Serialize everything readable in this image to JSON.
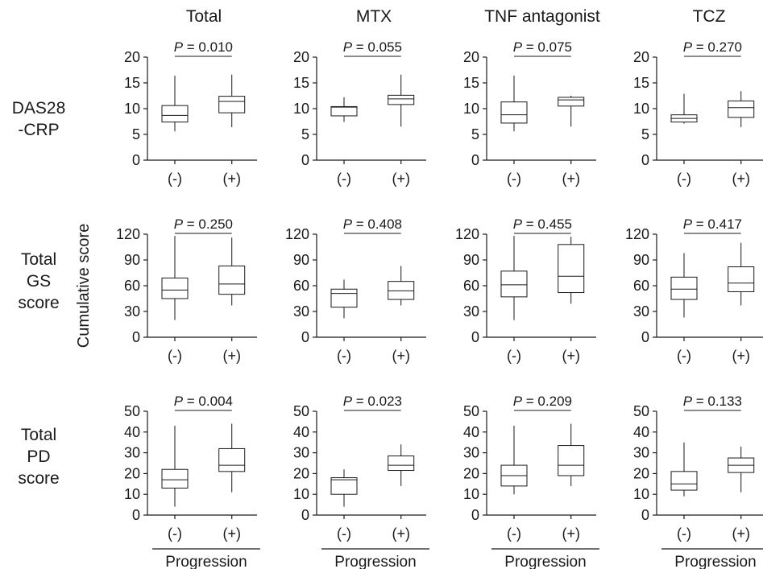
{
  "columns": [
    "Total",
    "MTX",
    "TNF antagonist",
    "TCZ"
  ],
  "rows": [
    {
      "label_lines": [
        "DAS28",
        "-CRP"
      ]
    },
    {
      "label_lines": [
        "Total",
        "GS",
        "score"
      ]
    },
    {
      "label_lines": [
        "Total",
        "PD",
        "score"
      ]
    }
  ],
  "y_axis_label": "Cumulative score",
  "x_group_label": "Progression",
  "chart_data": [
    {
      "type": "box",
      "row": 0,
      "col": 0,
      "categories": [
        "(-)",
        "(+)"
      ],
      "yticks": [
        0,
        5,
        10,
        15,
        20
      ],
      "ylim": [
        0,
        20
      ],
      "p_text": "= 0.010",
      "boxes": [
        {
          "min": 5.6,
          "q1": 7.4,
          "median": 8.7,
          "q3": 10.6,
          "max": 16.4
        },
        {
          "min": 6.4,
          "q1": 9.2,
          "median": 11.4,
          "q3": 12.4,
          "max": 16.6
        }
      ]
    },
    {
      "type": "box",
      "row": 0,
      "col": 1,
      "categories": [
        "(-)",
        "(+)"
      ],
      "yticks": [
        0,
        5,
        10,
        15,
        20
      ],
      "ylim": [
        0,
        20
      ],
      "p_text": "= 0.055",
      "boxes": [
        {
          "min": 7.4,
          "q1": 8.6,
          "median": 10.3,
          "q3": 10.4,
          "max": 12.2
        },
        {
          "min": 6.5,
          "q1": 10.8,
          "median": 11.9,
          "q3": 12.6,
          "max": 16.6
        }
      ]
    },
    {
      "type": "box",
      "row": 0,
      "col": 2,
      "categories": [
        "(-)",
        "(+)"
      ],
      "yticks": [
        0,
        5,
        10,
        15,
        20
      ],
      "ylim": [
        0,
        20
      ],
      "p_text": "= 0.075",
      "boxes": [
        {
          "min": 5.6,
          "q1": 7.2,
          "median": 8.8,
          "q3": 11.3,
          "max": 16.4
        },
        {
          "min": 6.5,
          "q1": 10.5,
          "median": 11.7,
          "q3": 12.2,
          "max": 12.5
        }
      ]
    },
    {
      "type": "box",
      "row": 0,
      "col": 3,
      "categories": [
        "(-)",
        "(+)"
      ],
      "yticks": [
        0,
        5,
        10,
        15,
        20
      ],
      "ylim": [
        0,
        20
      ],
      "p_text": "= 0.270",
      "boxes": [
        {
          "min": 7.1,
          "q1": 7.4,
          "median": 8.1,
          "q3": 8.8,
          "max": 12.9
        },
        {
          "min": 6.4,
          "q1": 8.3,
          "median": 10.2,
          "q3": 11.5,
          "max": 13.4
        }
      ]
    },
    {
      "type": "box",
      "row": 1,
      "col": 0,
      "categories": [
        "(-)",
        "(+)"
      ],
      "yticks": [
        0,
        30,
        60,
        90,
        120
      ],
      "ylim": [
        0,
        120
      ],
      "p_text": "= 0.250",
      "boxes": [
        {
          "min": 20,
          "q1": 45,
          "median": 55,
          "q3": 69,
          "max": 118
        },
        {
          "min": 37,
          "q1": 50,
          "median": 62,
          "q3": 83,
          "max": 116
        }
      ]
    },
    {
      "type": "box",
      "row": 1,
      "col": 1,
      "categories": [
        "(-)",
        "(+)"
      ],
      "yticks": [
        0,
        30,
        60,
        90,
        120
      ],
      "ylim": [
        0,
        120
      ],
      "p_text": "= 0.408",
      "boxes": [
        {
          "min": 22,
          "q1": 35,
          "median": 51,
          "q3": 56,
          "max": 67
        },
        {
          "min": 37,
          "q1": 44,
          "median": 54,
          "q3": 65,
          "max": 83
        }
      ]
    },
    {
      "type": "box",
      "row": 1,
      "col": 2,
      "categories": [
        "(-)",
        "(+)"
      ],
      "yticks": [
        0,
        30,
        60,
        90,
        120
      ],
      "ylim": [
        0,
        120
      ],
      "p_text": "= 0.455",
      "boxes": [
        {
          "min": 20,
          "q1": 47,
          "median": 61,
          "q3": 77,
          "max": 118
        },
        {
          "min": 39,
          "q1": 52,
          "median": 71,
          "q3": 108,
          "max": 117
        }
      ]
    },
    {
      "type": "box",
      "row": 1,
      "col": 3,
      "categories": [
        "(-)",
        "(+)"
      ],
      "yticks": [
        0,
        30,
        60,
        90,
        120
      ],
      "ylim": [
        0,
        120
      ],
      "p_text": "= 0.417",
      "boxes": [
        {
          "min": 23,
          "q1": 44,
          "median": 56,
          "q3": 70,
          "max": 98
        },
        {
          "min": 37,
          "q1": 53,
          "median": 63,
          "q3": 82,
          "max": 110
        }
      ]
    },
    {
      "type": "box",
      "row": 2,
      "col": 0,
      "categories": [
        "(-)",
        "(+)"
      ],
      "yticks": [
        0,
        10,
        20,
        30,
        40,
        50
      ],
      "ylim": [
        0,
        50
      ],
      "p_text": "= 0.004",
      "boxes": [
        {
          "min": 4,
          "q1": 13,
          "median": 17,
          "q3": 22,
          "max": 43
        },
        {
          "min": 11,
          "q1": 21,
          "median": 24,
          "q3": 32,
          "max": 44
        }
      ]
    },
    {
      "type": "box",
      "row": 2,
      "col": 1,
      "categories": [
        "(-)",
        "(+)"
      ],
      "yticks": [
        0,
        10,
        20,
        30,
        40,
        50
      ],
      "ylim": [
        0,
        50
      ],
      "p_text": "= 0.023",
      "boxes": [
        {
          "min": 4,
          "q1": 10,
          "median": 17,
          "q3": 18,
          "max": 22
        },
        {
          "min": 14,
          "q1": 21.5,
          "median": 24,
          "q3": 28.5,
          "max": 34
        }
      ]
    },
    {
      "type": "box",
      "row": 2,
      "col": 2,
      "categories": [
        "(-)",
        "(+)"
      ],
      "yticks": [
        0,
        10,
        20,
        30,
        40,
        50
      ],
      "ylim": [
        0,
        50
      ],
      "p_text": "= 0.209",
      "boxes": [
        {
          "min": 10,
          "q1": 14,
          "median": 19,
          "q3": 24,
          "max": 43
        },
        {
          "min": 14,
          "q1": 19,
          "median": 24,
          "q3": 33.5,
          "max": 44
        }
      ]
    },
    {
      "type": "box",
      "row": 2,
      "col": 3,
      "categories": [
        "(-)",
        "(+)"
      ],
      "yticks": [
        0,
        10,
        20,
        30,
        40,
        50
      ],
      "ylim": [
        0,
        50
      ],
      "p_text": "= 0.133",
      "boxes": [
        {
          "min": 9,
          "q1": 12,
          "median": 15,
          "q3": 21,
          "max": 35
        },
        {
          "min": 11,
          "q1": 20.5,
          "median": 24,
          "q3": 27.5,
          "max": 33
        }
      ]
    }
  ]
}
